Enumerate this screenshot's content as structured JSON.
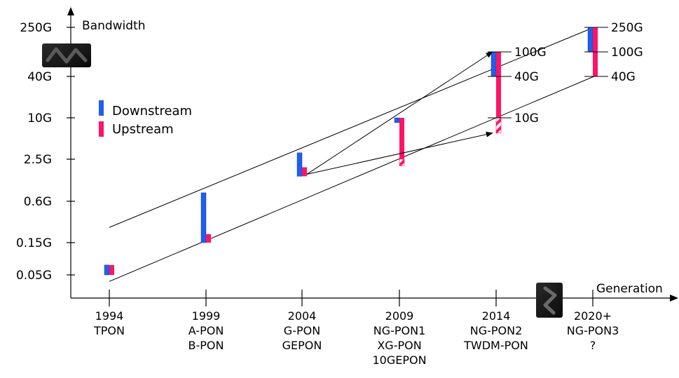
{
  "chart_data": {
    "type": "bar",
    "title": "",
    "ylabel": "Bandwidth",
    "xlabel": "Generation",
    "y_scale": "log",
    "y_ticks": [
      "0.05G",
      "0.15G",
      "0.6G",
      "2.5G",
      "10G",
      "40G",
      "250G"
    ],
    "categories": [
      {
        "year": "1994",
        "lines": [
          "TPON"
        ]
      },
      {
        "year": "1999",
        "lines": [
          "A-PON",
          "B-PON"
        ]
      },
      {
        "year": "2004",
        "lines": [
          "G-PON",
          "GEPON"
        ]
      },
      {
        "year": "2009",
        "lines": [
          "NG-PON1",
          "XG-PON",
          "10GEPON"
        ]
      },
      {
        "year": "2014",
        "lines": [
          "NG-PON2",
          "TWDM-PON"
        ]
      },
      {
        "year": "2020+",
        "lines": [
          "NG-PON3",
          "?"
        ]
      }
    ],
    "series": [
      {
        "name": "Downstream",
        "color": "#1f5ff0",
        "values": [
          [
            0.05,
            0.07
          ],
          [
            0.15,
            0.8
          ],
          [
            1.4,
            3.1
          ],
          [
            8.5,
            10
          ],
          [
            40,
            100
          ],
          [
            100,
            250
          ]
        ]
      },
      {
        "name": "Upstream",
        "color": "#ff1368",
        "values": [
          [
            0.05,
            0.07
          ],
          [
            0.15,
            0.2
          ],
          [
            1.4,
            1.9
          ],
          [
            2.0,
            10
          ],
          [
            6.0,
            100
          ],
          [
            40,
            250
          ]
        ],
        "hatched_below": [
          null,
          null,
          null,
          2.5,
          10,
          null
        ]
      }
    ],
    "side_labels": [
      {
        "text": "100G",
        "value": 100,
        "category": 4
      },
      {
        "text": "40G",
        "value": 40,
        "category": 4
      },
      {
        "text": "10G",
        "value": 10,
        "category": 4
      },
      {
        "text": "250G",
        "value": 250,
        "category": 5
      },
      {
        "text": "100G",
        "value": 100,
        "category": 5
      },
      {
        "text": "40G",
        "value": 40,
        "category": 5
      }
    ],
    "trend_lines": [
      {
        "from": [
          0,
          0.25
        ],
        "to": [
          5,
          250
        ]
      },
      {
        "from": [
          0,
          0.04
        ],
        "to": [
          5,
          40
        ]
      }
    ],
    "arrows": [
      {
        "from": [
          2,
          1.5
        ],
        "to": [
          4,
          100
        ]
      },
      {
        "from": [
          2,
          1.5
        ],
        "to": [
          4,
          6
        ]
      }
    ],
    "legend": {
      "placement": "upper-left"
    }
  }
}
